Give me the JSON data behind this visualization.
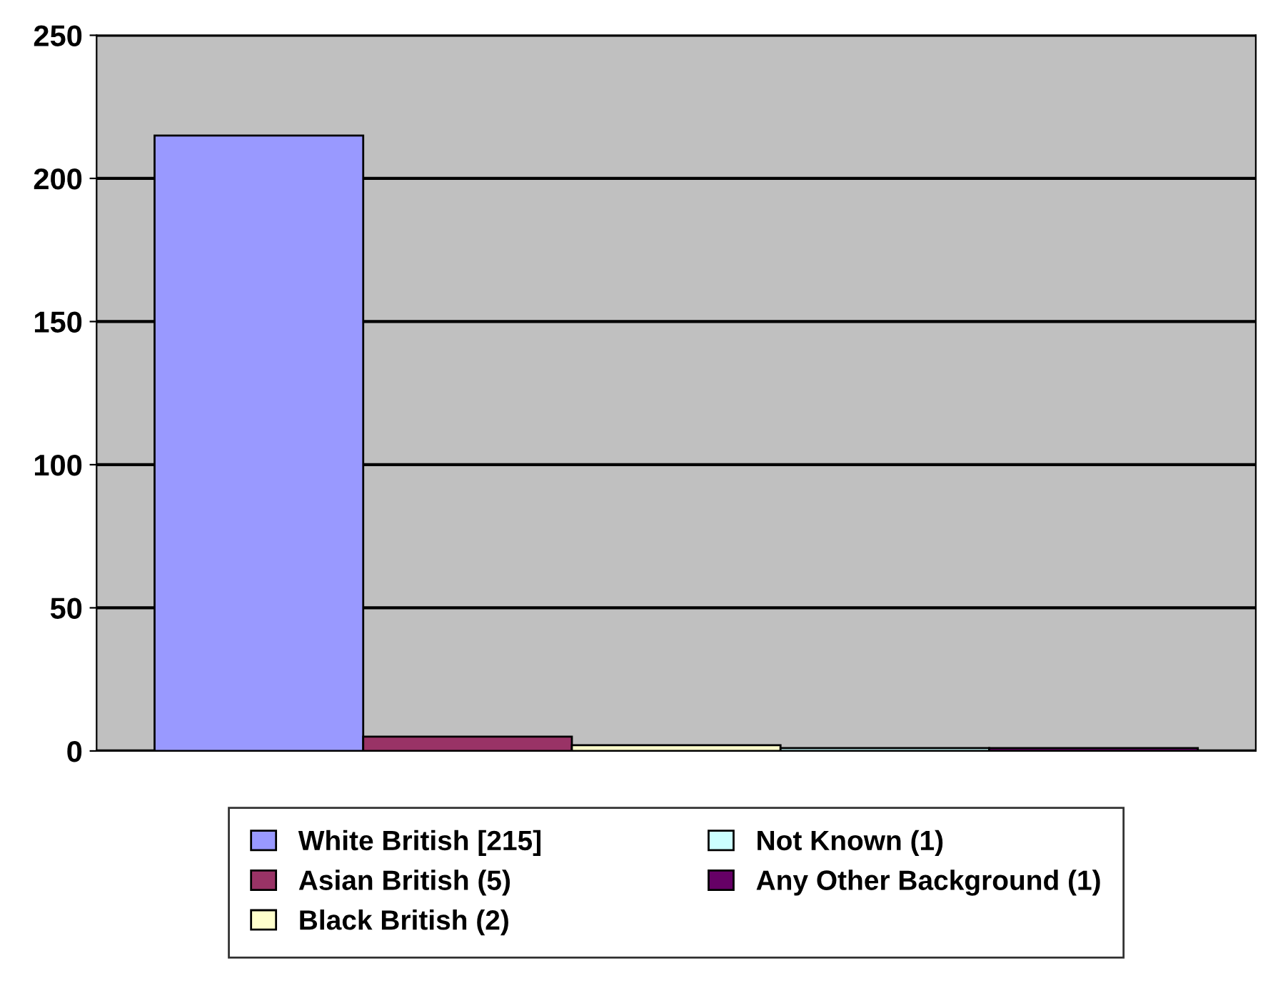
{
  "chart_data": {
    "type": "bar",
    "categories": [
      null
    ],
    "series": [
      {
        "name": "White British [215]",
        "color": "#9999ff",
        "values": [
          215
        ]
      },
      {
        "name": "Asian British (5)",
        "color": "#993366",
        "values": [
          5
        ]
      },
      {
        "name": "Black British (2)",
        "color": "#ffffcc",
        "values": [
          2
        ]
      },
      {
        "name": "Not Known (1)",
        "color": "#ccffff",
        "values": [
          1
        ]
      },
      {
        "name": "Any Other Background (1)",
        "color": "#660066",
        "values": [
          1
        ]
      }
    ],
    "ylim": [
      0,
      250
    ],
    "yticks": [
      0,
      50,
      100,
      150,
      200,
      250
    ],
    "grid": "y",
    "legend": "bottom"
  }
}
